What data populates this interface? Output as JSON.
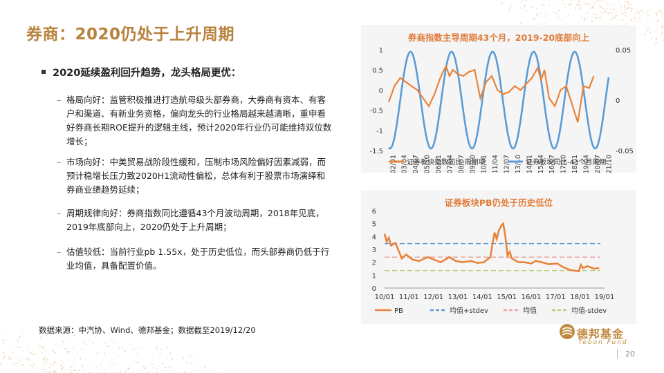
{
  "slide": {
    "title": "券商：2020仍处于上升周期",
    "heading": "2020延续盈利回升趋势，龙头格局更优：",
    "points": [
      {
        "dash": "–",
        "text": "格局向好：监管积极推进打造航母级头部券商，大券商有资本、有客户和渠道、有新业务资格，偏向龙头的行业格局越来越清晰，重申看好券商长期ROE提升的逻辑主线，预计2020年行业仍可能维持双位数增长；"
      },
      {
        "dash": "–",
        "text": "市场向好：中美贸易战阶段性缓和，压制市场风险偏好因素减弱，而预计稳增长压力致2020H1流动性偏松，总体有利于股票市场演绎和券商业绩趋势延续；"
      },
      {
        "dash": "–",
        "text": "周期规律向好：券商指数同比遵循43个月波动周期，2018年见底，2019年底部向上，2020仍处于上升周期；"
      },
      {
        "dash": "–",
        "text": "估值较低：当前行业pb 1.55x，处于历史低位，而头部券商仍低于行业均值，具备配置价值。"
      }
    ],
    "source": "数据来源：中汽协、Wind、德邦基金；数据截至2019/12/20",
    "logo_cn": "德邦基金",
    "logo_en": "Tebon Fund",
    "page_number": "20"
  },
  "colors": {
    "title": "#b8823e",
    "orange": "#e8833a",
    "blue": "#5b9bd5",
    "mean_red": "#e8a0a0",
    "mean_green": "#b5cf7a",
    "chart_bg": "#f5f5f5"
  },
  "chart_data": [
    {
      "type": "line",
      "title": "券商指数主导周期43个月，2019-20底部向上",
      "x_ticks": [
        "02/01",
        "03/04",
        "04/07",
        "05/10",
        "06/01",
        "07/04",
        "08/07",
        "09/10",
        "10/01",
        "11/04",
        "12/07",
        "13/10",
        "14/01",
        "15/04",
        "16/07",
        "17/10",
        "18/01",
        "19/04",
        "20/07",
        "21/10"
      ],
      "y_left_ticks": [
        "1",
        "0.5",
        "0",
        "-0.5",
        "-1",
        "-1.5"
      ],
      "y_left_range": [
        -1.5,
        1
      ],
      "y_right_ticks": [
        "0.05",
        "0",
        "-0.05"
      ],
      "y_right_range": [
        -0.05,
        0.05
      ],
      "series": [
        {
          "name": "证券板块指数同比-周期项",
          "axis": "left",
          "x": [
            2002.0,
            2002.5,
            2003.0,
            2003.5,
            2004.0,
            2004.5,
            2005.0,
            2005.5,
            2006.0,
            2006.5,
            2007.0,
            2007.3,
            2007.6,
            2008.0,
            2008.5,
            2009.0,
            2009.5,
            2010.0,
            2010.5,
            2011.0,
            2011.5,
            2012.0,
            2012.5,
            2013.0,
            2013.5,
            2014.0,
            2014.5,
            2015.0,
            2015.3,
            2015.6,
            2016.0,
            2016.5,
            2017.0,
            2017.5,
            2018.0,
            2018.5,
            2019.0,
            2019.5,
            2019.9
          ],
          "y": [
            -0.3,
            0.1,
            0.3,
            0.2,
            0.1,
            0.0,
            -0.2,
            -0.4,
            -0.1,
            0.3,
            0.6,
            0.35,
            0.5,
            0.4,
            0.35,
            0.45,
            0.5,
            -0.2,
            0.2,
            0.35,
            0.0,
            -0.1,
            -0.05,
            0.1,
            0.0,
            0.15,
            0.3,
            0.55,
            0.25,
            0.5,
            -0.2,
            -0.4,
            0.0,
            0.1,
            -0.35,
            -0.8,
            0.1,
            0.05,
            0.35
          ]
        },
        {
          "name": "证券板块同比-43个月周期",
          "axis": "right",
          "sine": {
            "period_years": 3.583,
            "peak_year": 2003.9,
            "amplitude": 0.048,
            "x_start": 2002.0,
            "x_end": 2021.2
          }
        }
      ],
      "legend_position": "bottom"
    },
    {
      "type": "line",
      "title": "证券板块PB仍处于历史低位",
      "x_ticks": [
        "10/01",
        "11/01",
        "12/01",
        "13/01",
        "14/01",
        "15/01",
        "16/01",
        "17/01",
        "18/01",
        "19/01"
      ],
      "x_range": [
        2010.0,
        2020.0
      ],
      "y_ticks": [
        "6",
        "5",
        "4",
        "3",
        "2",
        "1",
        "0"
      ],
      "y_range": [
        0,
        6
      ],
      "series": [
        {
          "name": "PB",
          "x": [
            2010.0,
            2010.1,
            2010.2,
            2010.3,
            2010.5,
            2010.8,
            2011.0,
            2011.3,
            2011.6,
            2012.0,
            2012.3,
            2012.6,
            2013.0,
            2013.3,
            2013.6,
            2014.0,
            2014.3,
            2014.6,
            2014.9,
            2015.0,
            2015.1,
            2015.2,
            2015.3,
            2015.4,
            2015.5,
            2015.6,
            2015.7,
            2015.8,
            2015.9,
            2016.0,
            2016.2,
            2016.5,
            2016.8,
            2017.0,
            2017.3,
            2017.6,
            2018.0,
            2018.3,
            2018.6,
            2019.0,
            2019.1,
            2019.2,
            2019.4,
            2019.7,
            2019.95
          ],
          "y": [
            4.2,
            3.6,
            3.9,
            3.3,
            3.5,
            2.3,
            2.6,
            2.2,
            2.1,
            2.4,
            2.2,
            2.0,
            2.4,
            2.1,
            2.0,
            2.1,
            1.95,
            2.0,
            2.4,
            3.4,
            4.3,
            3.8,
            4.5,
            4.8,
            5.0,
            4.0,
            2.5,
            2.8,
            2.3,
            2.2,
            2.0,
            2.0,
            1.9,
            2.1,
            2.0,
            1.85,
            1.9,
            1.6,
            1.4,
            1.3,
            1.8,
            1.55,
            1.7,
            1.5,
            1.55
          ]
        },
        {
          "name": "均值+stdev",
          "value": 3.45
        },
        {
          "name": "均值",
          "value": 2.4
        },
        {
          "name": "均值-stdev",
          "value": 1.35
        }
      ],
      "legend_position": "bottom"
    }
  ]
}
